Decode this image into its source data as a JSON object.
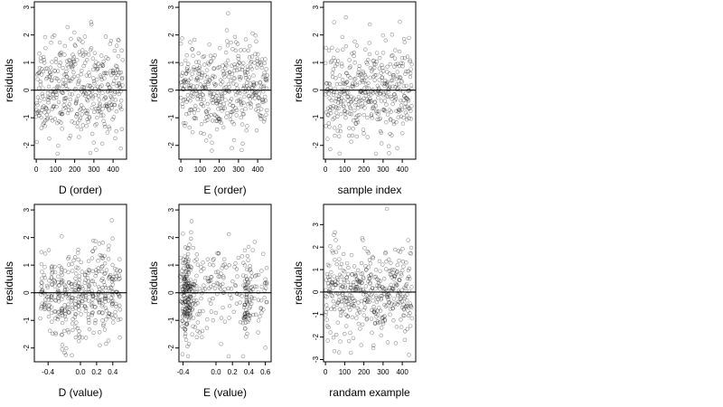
{
  "chart_data": [
    {
      "id": "d-order",
      "type": "scatter",
      "xlabel": "D (order)",
      "ylabel": "residuals",
      "xlim": [
        -10,
        470
      ],
      "ylim": [
        -2.5,
        3.2
      ],
      "xticks": [
        0,
        100,
        200,
        300,
        400
      ],
      "yticks": [
        -2,
        -1,
        0,
        1,
        2,
        3
      ],
      "hline": 0,
      "points": {
        "generator": "uniform-index",
        "n": 420,
        "xmin": 0,
        "xmax": 450,
        "seed": 11,
        "yscale": 0.85,
        "ymin": -2.3,
        "ymax": 3.0
      }
    },
    {
      "id": "e-order",
      "type": "scatter",
      "xlabel": "E (order)",
      "ylabel": "residuals",
      "xlim": [
        -10,
        470
      ],
      "ylim": [
        -2.5,
        3.2
      ],
      "xticks": [
        0,
        100,
        200,
        300,
        400
      ],
      "yticks": [
        -2,
        -1,
        0,
        1,
        2,
        3
      ],
      "hline": 0,
      "points": {
        "generator": "uniform-index",
        "n": 420,
        "xmin": 0,
        "xmax": 450,
        "seed": 23,
        "yscale": 0.85,
        "ymin": -2.3,
        "ymax": 3.0
      }
    },
    {
      "id": "sample-index",
      "type": "scatter",
      "xlabel": "sample index",
      "ylabel": "residuals",
      "xlim": [
        -10,
        470
      ],
      "ylim": [
        -2.5,
        3.2
      ],
      "xticks": [
        0,
        100,
        200,
        300,
        400
      ],
      "yticks": [
        -2,
        -1,
        0,
        1,
        2,
        3
      ],
      "hline": 0,
      "points": {
        "generator": "uniform-index",
        "n": 420,
        "xmin": 0,
        "xmax": 450,
        "seed": 37,
        "yscale": 0.85,
        "ymin": -2.3,
        "ymax": 3.0
      }
    },
    {
      "id": "d-value",
      "type": "scatter",
      "xlabel": "D (value)",
      "ylabel": "residuals",
      "xlim": [
        -0.57,
        0.57
      ],
      "ylim": [
        -2.5,
        3.2
      ],
      "xticks": [
        -0.4,
        0.0,
        0.2,
        0.4
      ],
      "xticklabels": [
        "-0.4",
        "0.0",
        "0.2",
        "0.4"
      ],
      "yticks": [
        -2,
        -1,
        0,
        1,
        2,
        3
      ],
      "hline": 0,
      "points": {
        "generator": "columns",
        "n": 420,
        "xmin": -0.5,
        "xmax": 0.5,
        "columns": 24,
        "jitter": 0.008,
        "seed": 41,
        "yscale": 0.8,
        "ymin": -2.3,
        "ymax": 3.0
      }
    },
    {
      "id": "e-value",
      "type": "scatter",
      "xlabel": "E (value)",
      "ylabel": "residuals",
      "xlim": [
        -0.45,
        0.67
      ],
      "ylim": [
        -2.5,
        3.2
      ],
      "xticks": [
        -0.4,
        0.0,
        0.2,
        0.4,
        0.6
      ],
      "xticklabels": [
        "-0.4",
        "0.0",
        "0.2",
        "0.4",
        "0.6"
      ],
      "yticks": [
        -2,
        -1,
        0,
        1,
        2,
        3
      ],
      "hline": 0,
      "points": {
        "generator": "clustered",
        "n": 420,
        "xmin": -0.42,
        "xmax": 0.62,
        "clusters": [
          {
            "center": -0.36,
            "spread": 0.035,
            "weight": 0.35
          },
          {
            "center": 0.37,
            "spread": 0.03,
            "weight": 0.12
          }
        ],
        "seed": 53,
        "yscale": 0.8,
        "ymin": -2.3,
        "ymax": 3.0
      }
    },
    {
      "id": "random-example",
      "type": "scatter",
      "xlabel": "randam example",
      "ylabel": "residuals",
      "xlim": [
        -10,
        470
      ],
      "ylim": [
        -3.1,
        3.9
      ],
      "xticks": [
        0,
        100,
        200,
        300,
        400
      ],
      "yticks": [
        -3,
        -2,
        -1,
        0,
        1,
        2,
        3
      ],
      "hline": 0,
      "points": {
        "generator": "uniform-index",
        "n": 420,
        "xmin": 0,
        "xmax": 450,
        "seed": 67,
        "yscale": 1.0,
        "ymin": -2.9,
        "ymax": 3.7
      }
    }
  ]
}
